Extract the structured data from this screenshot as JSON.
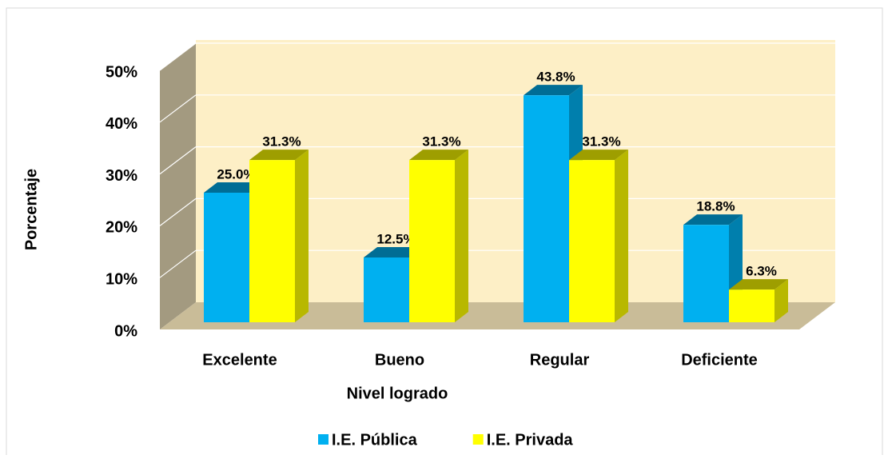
{
  "chart_data": {
    "type": "bar3d",
    "categories": [
      "Excelente",
      "Bueno",
      "Regular",
      "Deficiente"
    ],
    "series": [
      {
        "name": "I.E. Pública",
        "color": "#00b0f0",
        "values": [
          25.0,
          12.5,
          43.8,
          18.8
        ],
        "value_labels": [
          "25.0%",
          "12.5%",
          "43.8%",
          "18.8%"
        ]
      },
      {
        "name": "I.E. Privada",
        "color": "#ffff00",
        "values": [
          31.3,
          31.3,
          31.3,
          6.3
        ],
        "value_labels": [
          "31.3%",
          "31.3%",
          "31.3%",
          "6.3%"
        ]
      }
    ],
    "ylim": [
      0,
      50
    ],
    "yticks": [
      {
        "value": 0,
        "label": "0%"
      },
      {
        "value": 10,
        "label": "10%"
      },
      {
        "value": 20,
        "label": "20%"
      },
      {
        "value": 30,
        "label": "30%"
      },
      {
        "value": 40,
        "label": "40%"
      },
      {
        "value": 50,
        "label": "50%"
      }
    ],
    "xlabel": "Nivel logrado",
    "ylabel": "Porcentaje",
    "grid": true,
    "legend": "bottom"
  }
}
